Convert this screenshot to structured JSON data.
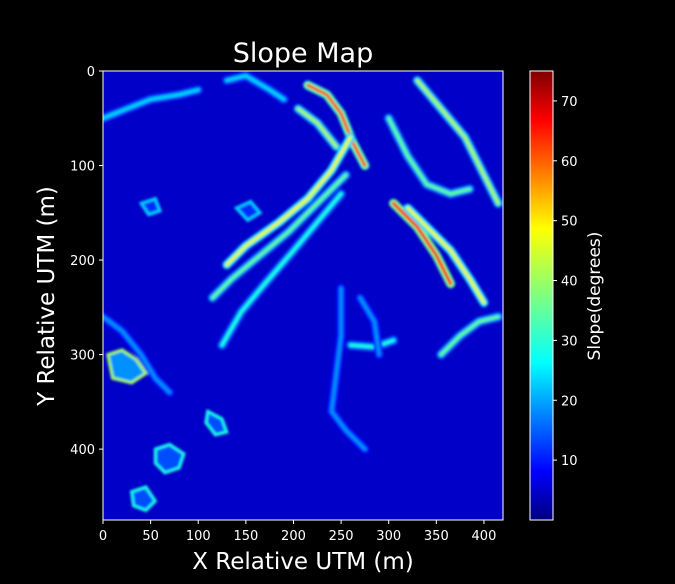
{
  "chart_data": {
    "type": "heatmap",
    "title": "Slope Map",
    "xlabel": "X Relative UTM (m)",
    "ylabel": "Y Relative UTM (m)",
    "xlim": [
      0,
      420
    ],
    "ylim": [
      475,
      0
    ],
    "xticks": [
      "0",
      "50",
      "100",
      "150",
      "200",
      "250",
      "300",
      "350",
      "400"
    ],
    "yticks": [
      "0",
      "100",
      "200",
      "300",
      "400"
    ],
    "colormap": "jet",
    "colorbar": {
      "label": "Slope(degrees)",
      "range": [
        0,
        75
      ],
      "ticks": [
        "10",
        "20",
        "30",
        "40",
        "50",
        "60",
        "70"
      ]
    },
    "features": [
      {
        "kind": "ridge",
        "slope": 60,
        "points": [
          [
            215,
            15
          ],
          [
            235,
            25
          ],
          [
            250,
            45
          ],
          [
            262,
            75
          ],
          [
            275,
            100
          ]
        ]
      },
      {
        "kind": "ridge",
        "slope": 40,
        "points": [
          [
            205,
            40
          ],
          [
            225,
            55
          ],
          [
            245,
            80
          ]
        ]
      },
      {
        "kind": "ridge",
        "slope": 45,
        "points": [
          [
            260,
            70
          ],
          [
            240,
            105
          ],
          [
            215,
            135
          ],
          [
            185,
            160
          ],
          [
            150,
            185
          ],
          [
            130,
            205
          ]
        ]
      },
      {
        "kind": "ridge",
        "slope": 35,
        "points": [
          [
            255,
            110
          ],
          [
            225,
            140
          ],
          [
            195,
            170
          ],
          [
            165,
            195
          ],
          [
            135,
            220
          ],
          [
            115,
            240
          ]
        ]
      },
      {
        "kind": "ridge",
        "slope": 30,
        "points": [
          [
            250,
            130
          ],
          [
            225,
            160
          ],
          [
            200,
            190
          ],
          [
            170,
            225
          ],
          [
            145,
            255
          ],
          [
            125,
            290
          ]
        ]
      },
      {
        "kind": "ridge",
        "slope": 65,
        "points": [
          [
            305,
            140
          ],
          [
            330,
            165
          ],
          [
            350,
            195
          ],
          [
            365,
            225
          ]
        ]
      },
      {
        "kind": "ridge",
        "slope": 45,
        "points": [
          [
            320,
            145
          ],
          [
            345,
            170
          ],
          [
            365,
            190
          ],
          [
            385,
            220
          ],
          [
            400,
            245
          ]
        ]
      },
      {
        "kind": "ridge",
        "slope": 35,
        "points": [
          [
            300,
            50
          ],
          [
            320,
            90
          ],
          [
            340,
            120
          ],
          [
            365,
            130
          ],
          [
            385,
            125
          ]
        ]
      },
      {
        "kind": "ridge",
        "slope": 40,
        "points": [
          [
            330,
            10
          ],
          [
            355,
            40
          ],
          [
            380,
            70
          ],
          [
            400,
            110
          ],
          [
            415,
            140
          ]
        ]
      },
      {
        "kind": "ridge",
        "slope": 35,
        "points": [
          [
            355,
            300
          ],
          [
            375,
            280
          ],
          [
            395,
            265
          ],
          [
            415,
            260
          ]
        ]
      },
      {
        "kind": "ridge",
        "slope": 30,
        "points": [
          [
            260,
            290
          ],
          [
            285,
            292
          ],
          [
            305,
            285
          ]
        ]
      },
      {
        "kind": "ridge",
        "slope": 20,
        "points": [
          [
            250,
            230
          ],
          [
            250,
            280
          ],
          [
            245,
            320
          ],
          [
            240,
            360
          ],
          [
            255,
            380
          ],
          [
            275,
            400
          ]
        ]
      },
      {
        "kind": "ridge",
        "slope": 20,
        "points": [
          [
            0,
            260
          ],
          [
            20,
            275
          ],
          [
            40,
            300
          ],
          [
            55,
            325
          ],
          [
            70,
            340
          ]
        ]
      },
      {
        "kind": "ridge",
        "slope": 25,
        "points": [
          [
            0,
            50
          ],
          [
            25,
            40
          ],
          [
            50,
            30
          ],
          [
            80,
            25
          ],
          [
            100,
            20
          ]
        ]
      },
      {
        "kind": "ridge",
        "slope": 25,
        "points": [
          [
            130,
            10
          ],
          [
            150,
            5
          ],
          [
            175,
            20
          ],
          [
            190,
            30
          ]
        ]
      },
      {
        "kind": "ridge",
        "slope": 20,
        "points": [
          [
            270,
            240
          ],
          [
            285,
            265
          ],
          [
            290,
            300
          ]
        ]
      },
      {
        "kind": "blob",
        "slope": 40,
        "points": [
          [
            5,
            300
          ],
          [
            20,
            295
          ],
          [
            35,
            305
          ],
          [
            45,
            320
          ],
          [
            30,
            330
          ],
          [
            10,
            325
          ]
        ]
      },
      {
        "kind": "blob",
        "slope": 30,
        "points": [
          [
            55,
            400
          ],
          [
            70,
            395
          ],
          [
            85,
            405
          ],
          [
            80,
            420
          ],
          [
            65,
            425
          ],
          [
            55,
            415
          ]
        ]
      },
      {
        "kind": "blob",
        "slope": 30,
        "points": [
          [
            30,
            445
          ],
          [
            45,
            440
          ],
          [
            55,
            455
          ],
          [
            45,
            465
          ],
          [
            32,
            460
          ]
        ]
      },
      {
        "kind": "blob",
        "slope": 30,
        "points": [
          [
            110,
            360
          ],
          [
            125,
            368
          ],
          [
            130,
            382
          ],
          [
            118,
            385
          ],
          [
            108,
            372
          ]
        ]
      },
      {
        "kind": "blob",
        "slope": 25,
        "points": [
          [
            140,
            145
          ],
          [
            155,
            138
          ],
          [
            165,
            150
          ],
          [
            152,
            158
          ]
        ]
      },
      {
        "kind": "blob",
        "slope": 25,
        "points": [
          [
            40,
            140
          ],
          [
            55,
            135
          ],
          [
            60,
            148
          ],
          [
            48,
            152
          ]
        ]
      }
    ]
  }
}
